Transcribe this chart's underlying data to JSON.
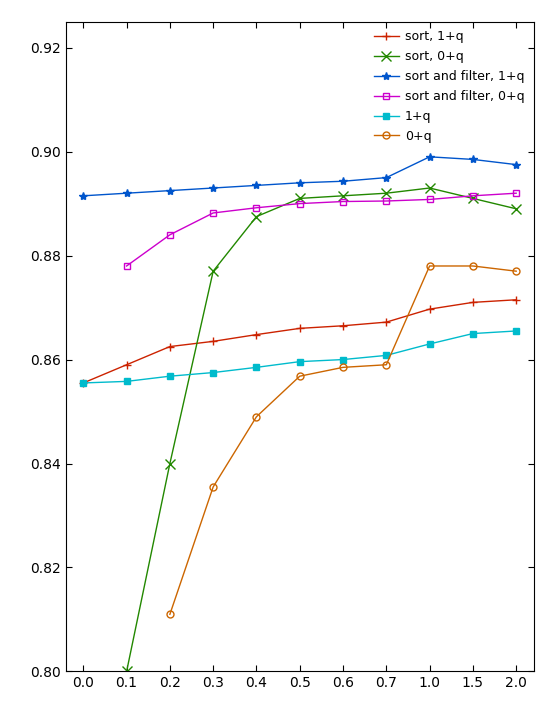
{
  "x_ticks_pos": [
    0,
    1,
    2,
    3,
    4,
    5,
    6,
    7,
    8,
    9,
    10
  ],
  "x_ticks_labels": [
    "0.0",
    "0.1",
    "0.2",
    "0.3",
    "0.4",
    "0.5",
    "0.6",
    "0.7",
    "1.0",
    "1.5",
    "2.0"
  ],
  "series": [
    {
      "label": "sort, 1+q",
      "color": "#cc2200",
      "marker": "+",
      "markersize": 6,
      "mfc": "#cc2200",
      "x_idx": [
        0,
        1,
        2,
        3,
        4,
        5,
        6,
        7,
        8,
        9,
        10
      ],
      "y": [
        0.8555,
        0.859,
        0.8625,
        0.8635,
        0.8648,
        0.866,
        0.8665,
        0.8672,
        0.8697,
        0.871,
        0.8715
      ]
    },
    {
      "label": "sort, 0+q",
      "color": "#228800",
      "marker": "x",
      "markersize": 7,
      "mfc": "#228800",
      "x_idx": [
        1,
        2,
        3,
        4,
        5,
        6,
        7,
        8,
        9,
        10
      ],
      "y": [
        0.8,
        0.84,
        0.877,
        0.8875,
        0.891,
        0.8915,
        0.892,
        0.893,
        0.891,
        0.889
      ]
    },
    {
      "label": "sort and filter, 1+q",
      "color": "#0055cc",
      "marker": "*",
      "markersize": 6,
      "mfc": "#0055cc",
      "x_idx": [
        0,
        1,
        2,
        3,
        4,
        5,
        6,
        7,
        8,
        9,
        10
      ],
      "y": [
        0.8915,
        0.892,
        0.8925,
        0.893,
        0.8935,
        0.894,
        0.8943,
        0.895,
        0.899,
        0.8985,
        0.8975
      ]
    },
    {
      "label": "sort and filter, 0+q",
      "color": "#cc00cc",
      "marker": "s",
      "markersize": 5,
      "mfc": "none",
      "x_idx": [
        1,
        2,
        3,
        4,
        5,
        6,
        7,
        8,
        9,
        10
      ],
      "y": [
        0.878,
        0.884,
        0.8882,
        0.8892,
        0.89,
        0.8904,
        0.8905,
        0.8908,
        0.8915,
        0.892
      ]
    },
    {
      "label": "1+q",
      "color": "#00bbcc",
      "marker": "s",
      "markersize": 5,
      "mfc": "#00bbcc",
      "x_idx": [
        0,
        1,
        2,
        3,
        4,
        5,
        6,
        7,
        8,
        9,
        10
      ],
      "y": [
        0.8555,
        0.8558,
        0.8568,
        0.8575,
        0.8585,
        0.8596,
        0.86,
        0.8608,
        0.863,
        0.865,
        0.8655
      ]
    },
    {
      "label": "0+q",
      "color": "#cc6600",
      "marker": "o",
      "markersize": 5,
      "mfc": "none",
      "x_idx": [
        2,
        3,
        4,
        5,
        6,
        7,
        8,
        9,
        10
      ],
      "y": [
        0.811,
        0.8355,
        0.849,
        0.8568,
        0.8585,
        0.859,
        0.878,
        0.878,
        0.877
      ]
    }
  ],
  "ylim": [
    0.8,
    0.925
  ],
  "yticks": [
    0.8,
    0.82,
    0.84,
    0.86,
    0.88,
    0.9,
    0.92
  ],
  "figsize": [
    5.5,
    7.22
  ],
  "dpi": 100
}
